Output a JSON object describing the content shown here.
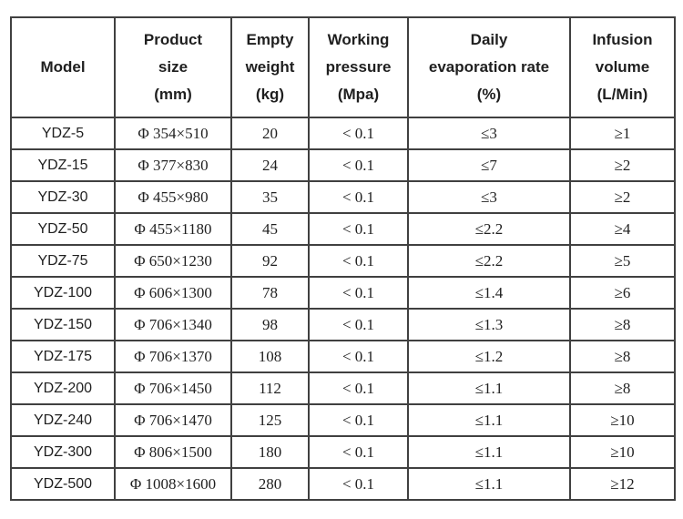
{
  "colors": {
    "background": "#ffffff",
    "border": "#404040",
    "text": "#1f1f1f"
  },
  "table": {
    "header_lines": [
      "Model",
      "Product\nsize\n(mm)",
      "Empty\nweight\n(kg)",
      "Working\npressure\n(Mpa)",
      "Daily\nevaporation rate\n(%)",
      "Infusion\nvolume\n(L/Min)"
    ]
  },
  "chart_data": {
    "type": "table",
    "columns": [
      "Model",
      "Product size (mm)",
      "Empty weight (kg)",
      "Working pressure (Mpa)",
      "Daily evaporation rate (%)",
      "Infusion volume (L/Min)"
    ],
    "rows": [
      [
        "YDZ-5",
        "Φ 354×510",
        "20",
        "< 0.1",
        "≤3",
        "≥1"
      ],
      [
        "YDZ-15",
        "Φ 377×830",
        "24",
        "< 0.1",
        "≤7",
        "≥2"
      ],
      [
        "YDZ-30",
        "Φ 455×980",
        "35",
        "< 0.1",
        "≤3",
        "≥2"
      ],
      [
        "YDZ-50",
        "Φ 455×1180",
        "45",
        "< 0.1",
        "≤2.2",
        "≥4"
      ],
      [
        "YDZ-75",
        "Φ 650×1230",
        "92",
        "< 0.1",
        "≤2.2",
        "≥5"
      ],
      [
        "YDZ-100",
        "Φ 606×1300",
        "78",
        "< 0.1",
        "≤1.4",
        "≥6"
      ],
      [
        "YDZ-150",
        "Φ 706×1340",
        "98",
        "< 0.1",
        "≤1.3",
        "≥8"
      ],
      [
        "YDZ-175",
        "Φ 706×1370",
        "108",
        "< 0.1",
        "≤1.2",
        "≥8"
      ],
      [
        "YDZ-200",
        "Φ 706×1450",
        "112",
        "< 0.1",
        "≤1.1",
        "≥8"
      ],
      [
        "YDZ-240",
        "Φ 706×1470",
        "125",
        "< 0.1",
        "≤1.1",
        "≥10"
      ],
      [
        "YDZ-300",
        "Φ 806×1500",
        "180",
        "< 0.1",
        "≤1.1",
        "≥10"
      ],
      [
        "YDZ-500",
        "Φ 1008×1600",
        "280",
        "< 0.1",
        "≤1.1",
        "≥12"
      ]
    ]
  }
}
